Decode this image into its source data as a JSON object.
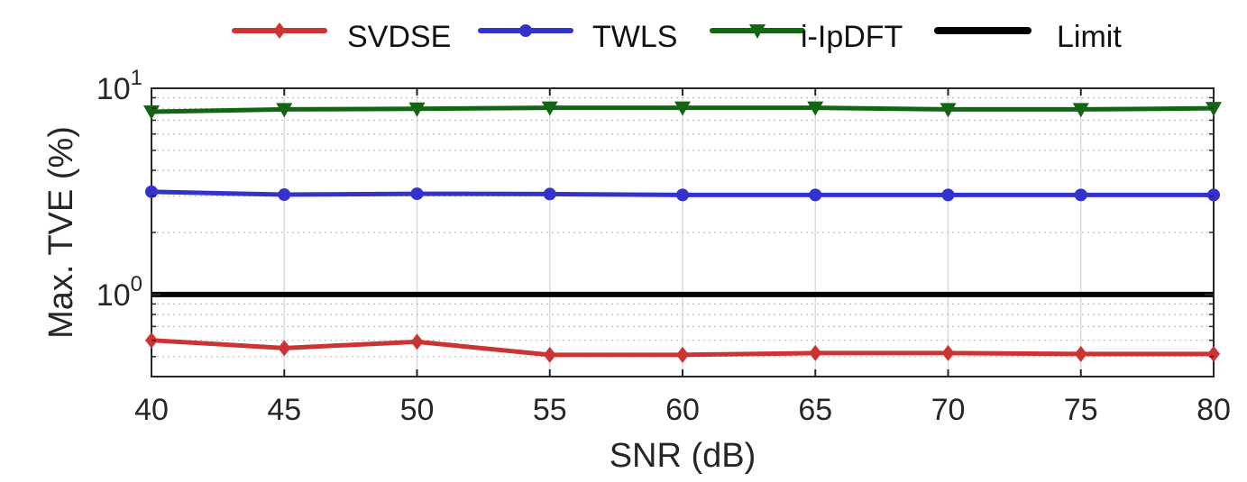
{
  "chart_data": {
    "type": "line",
    "xlabel": "SNR (dB)",
    "ylabel": "Max. TVE (%)",
    "xlim": [
      40,
      80
    ],
    "ylim": [
      0.4,
      10
    ],
    "y_scale": "log",
    "grid": true,
    "legend_position": "top",
    "x": [
      40,
      45,
      50,
      55,
      60,
      65,
      70,
      75,
      80
    ],
    "x_tick_labels": [
      "40",
      "45",
      "50",
      "55",
      "60",
      "65",
      "70",
      "75",
      "80"
    ],
    "y_ticks": [
      {
        "value": 10,
        "base": "10",
        "exp": "1"
      },
      {
        "value": 1,
        "base": "10",
        "exp": "0"
      }
    ],
    "series": [
      {
        "name": "SVDSE",
        "color": "#cc3333",
        "marker": "diamond",
        "values": [
          0.6,
          0.55,
          0.59,
          0.51,
          0.51,
          0.52,
          0.52,
          0.515,
          0.515
        ]
      },
      {
        "name": "TWLS",
        "color": "#3333cc",
        "marker": "circle",
        "values": [
          3.15,
          3.05,
          3.08,
          3.07,
          3.04,
          3.04,
          3.04,
          3.04,
          3.04
        ]
      },
      {
        "name": "i-IpDFT",
        "color": "#116611",
        "marker": "triangle-down",
        "values": [
          7.7,
          7.9,
          7.95,
          8.05,
          8.05,
          8.05,
          7.9,
          7.9,
          8.0
        ]
      },
      {
        "name": "Limit",
        "color": "#000000",
        "marker": "none",
        "values": [
          1,
          1,
          1,
          1,
          1,
          1,
          1,
          1,
          1
        ]
      }
    ]
  }
}
